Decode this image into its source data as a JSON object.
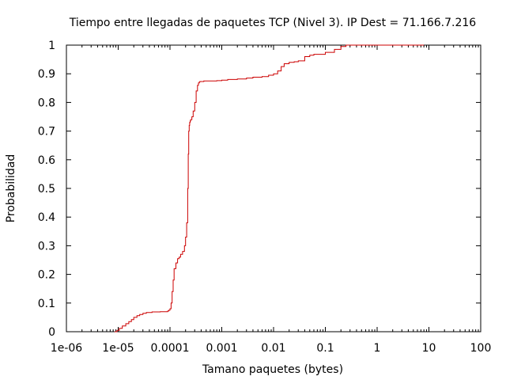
{
  "chart_data": {
    "type": "line",
    "title": "Tiempo entre llegadas de paquetes TCP (Nivel 3). IP Dest = 71.166.7.216",
    "xlabel": "Tamano paquetes (bytes)",
    "ylabel": "Probabilidad",
    "x_scale": "log",
    "xlim": [
      1e-06,
      100
    ],
    "ylim": [
      0,
      1
    ],
    "x_ticks": [
      1e-06,
      1e-05,
      0.0001,
      0.001,
      0.01,
      0.1,
      1,
      10,
      100
    ],
    "x_tick_labels": [
      "1e-06",
      "1e-05",
      "0.0001",
      "0.001",
      "0.01",
      "0.1",
      "1",
      "10",
      "100"
    ],
    "y_ticks": [
      0,
      0.1,
      0.2,
      0.3,
      0.4,
      0.5,
      0.6,
      0.7,
      0.8,
      0.9,
      1
    ],
    "y_tick_labels": [
      "0",
      "0.1",
      "0.2",
      "0.3",
      "0.4",
      "0.5",
      "0.6",
      "0.7",
      "0.8",
      "0.9",
      "1"
    ],
    "grid": false,
    "colors": {
      "series": "#cc0000",
      "axes": "#000000"
    },
    "series": [
      {
        "x": [
          8.5e-06,
          9.5e-06,
          1.05e-05,
          1.2e-05,
          1.4e-05,
          1.6e-05,
          1.8e-05,
          2e-05,
          2.3e-05,
          2.6e-05,
          3e-05,
          3.5e-05,
          4.5e-05,
          6.5e-05,
          8.5e-05,
          9e-05,
          9.5e-05,
          0.0001,
          0.000105,
          0.00011,
          0.000115,
          0.00012,
          0.00013,
          0.00014,
          0.00015,
          0.00016,
          0.000175,
          0.00019,
          0.0002,
          0.00021,
          0.00022,
          0.000225,
          0.00023,
          0.000235,
          0.00024,
          0.000245,
          0.00025,
          0.000265,
          0.00028,
          0.0003,
          0.00032,
          0.00034,
          0.000355,
          0.00037,
          0.00038,
          0.0004,
          0.00045,
          0.0006,
          0.0008,
          0.001,
          0.0013,
          0.002,
          0.003,
          0.004,
          0.006,
          0.008,
          0.01,
          0.012,
          0.014,
          0.016,
          0.02,
          0.025,
          0.03,
          0.04,
          0.05,
          0.06,
          0.1,
          0.15,
          0.2,
          0.25,
          0.5,
          1,
          3,
          8
        ],
        "y": [
          0,
          0.005,
          0.012,
          0.02,
          0.028,
          0.035,
          0.042,
          0.05,
          0.056,
          0.06,
          0.064,
          0.067,
          0.069,
          0.07,
          0.07,
          0.072,
          0.075,
          0.08,
          0.1,
          0.14,
          0.18,
          0.22,
          0.24,
          0.255,
          0.26,
          0.27,
          0.28,
          0.3,
          0.33,
          0.38,
          0.5,
          0.62,
          0.7,
          0.72,
          0.73,
          0.735,
          0.74,
          0.75,
          0.77,
          0.8,
          0.84,
          0.86,
          0.868,
          0.872,
          0.873,
          0.873,
          0.875,
          0.875,
          0.876,
          0.878,
          0.88,
          0.882,
          0.885,
          0.888,
          0.89,
          0.895,
          0.9,
          0.91,
          0.925,
          0.935,
          0.94,
          0.942,
          0.945,
          0.96,
          0.965,
          0.968,
          0.975,
          0.985,
          0.995,
          1,
          1,
          1,
          1,
          1
        ]
      }
    ]
  }
}
